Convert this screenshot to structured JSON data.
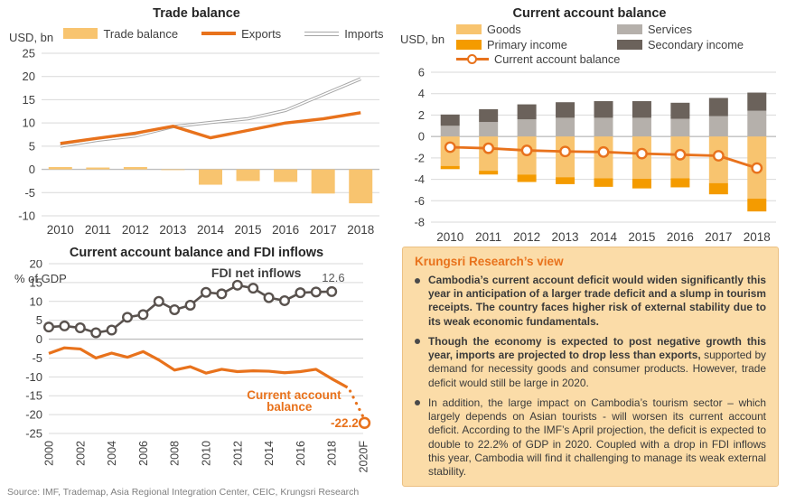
{
  "colors": {
    "light_orange": "#F8C46F",
    "mid_orange": "#F49B00",
    "orange": "#E8721C",
    "services_gray": "#B5B0AB",
    "secondary_gray": "#6B625B",
    "fdi_gray": "#59524E",
    "imports_gray": "#A6A6A6",
    "gridline": "#D9D9D9",
    "zero_line": "#BFBFBF",
    "tick_text": "#404040",
    "text_dark": "#3F3F3F",
    "muted_gray": "#595959",
    "panel_bg": "#FBDCA8",
    "panel_border": "#EBC083",
    "source_text": "#7F7F7F"
  },
  "chart_data": [
    {
      "id": "trade_balance",
      "type": "combo-bar-line",
      "title": "Trade balance",
      "unit_label": "USD, bn",
      "categories": [
        "2010",
        "2011",
        "2012",
        "2013",
        "2014",
        "2015",
        "2016",
        "2017",
        "2018"
      ],
      "ylim": [
        -10,
        25
      ],
      "ystep": 5,
      "series": [
        {
          "name": "Trade balance",
          "type": "bar",
          "color": "light_orange",
          "values": [
            0.5,
            0.4,
            0.5,
            -0.15,
            -3.3,
            -2.5,
            -2.7,
            -5.2,
            -7.3
          ]
        },
        {
          "name": "Exports",
          "type": "line",
          "color": "orange",
          "values": [
            5.6,
            6.7,
            7.8,
            9.3,
            6.8,
            8.4,
            10.0,
            10.9,
            12.2
          ]
        },
        {
          "name": "Imports",
          "type": "double-line",
          "color": "imports_gray",
          "values": [
            5.0,
            6.3,
            7.2,
            9.2,
            10.1,
            10.9,
            12.7,
            16.1,
            19.5
          ]
        }
      ]
    },
    {
      "id": "current_account_balance",
      "type": "stacked-bar-line",
      "title": "Current account balance",
      "unit_label": "USD, bn",
      "categories": [
        "2010",
        "2011",
        "2012",
        "2013",
        "2014",
        "2015",
        "2016",
        "2017",
        "2018"
      ],
      "ylim": [
        -8,
        6
      ],
      "ystep": 2,
      "series": [
        {
          "name": "Goods",
          "type": "bar",
          "color": "light_orange",
          "values": [
            -2.75,
            -3.2,
            -3.55,
            -3.8,
            -3.9,
            -3.95,
            -3.9,
            -4.35,
            -5.8
          ]
        },
        {
          "name": "Services",
          "type": "bar",
          "color": "services_gray",
          "values": [
            1.0,
            1.35,
            1.6,
            1.75,
            1.75,
            1.75,
            1.65,
            1.9,
            2.4
          ]
        },
        {
          "name": "Primary income",
          "type": "bar",
          "color": "mid_orange",
          "values": [
            -0.3,
            -0.35,
            -0.7,
            -0.65,
            -0.8,
            -0.9,
            -0.85,
            -1.05,
            -1.2
          ]
        },
        {
          "name": "Secondary income",
          "type": "bar",
          "color": "secondary_gray",
          "values": [
            1.05,
            1.2,
            1.4,
            1.45,
            1.55,
            1.55,
            1.5,
            1.7,
            1.7
          ]
        },
        {
          "name": "Current account balance",
          "type": "line-marker",
          "color": "orange",
          "values": [
            -1.0,
            -1.1,
            -1.3,
            -1.4,
            -1.45,
            -1.6,
            -1.7,
            -1.8,
            -2.95
          ]
        }
      ]
    },
    {
      "id": "cab_fdi_inflows",
      "type": "line",
      "title": "Current account balance and FDI inflows",
      "unit_label": "% of GDP",
      "x": [
        2000,
        2001,
        2002,
        2003,
        2004,
        2005,
        2006,
        2007,
        2008,
        2009,
        2010,
        2011,
        2012,
        2013,
        2014,
        2015,
        2016,
        2017,
        2018
      ],
      "ylim": [
        -25,
        20
      ],
      "ystep": 5,
      "series": [
        {
          "name": "FDI net inflows",
          "color": "fdi_gray",
          "markers": true,
          "values": [
            3.2,
            3.5,
            3.0,
            1.7,
            2.4,
            5.8,
            6.5,
            10.0,
            7.8,
            9.0,
            12.4,
            12.0,
            14.3,
            13.5,
            11.0,
            10.2,
            12.3,
            12.5,
            12.6
          ]
        },
        {
          "name": "Current account balance",
          "color": "orange",
          "markers": false,
          "values": [
            -3.8,
            -2.3,
            -2.6,
            -5.0,
            -3.7,
            -4.8,
            -3.3,
            -5.5,
            -8.2,
            -7.3,
            -9.0,
            -8.0,
            -8.6,
            -8.4,
            -8.5,
            -8.9,
            -8.6,
            -8.0,
            -10.5
          ]
        }
      ],
      "cab_solid_end": {
        "year": 2019,
        "value": -12.8
      },
      "forecast": {
        "label": "2020F",
        "year": 2020,
        "value": -22.2
      },
      "xticks": [
        {
          "year": 2000,
          "label": "2000"
        },
        {
          "year": 2002,
          "label": "2002"
        },
        {
          "year": 2004,
          "label": "2004"
        },
        {
          "year": 2006,
          "label": "2006"
        },
        {
          "year": 2008,
          "label": "2008"
        },
        {
          "year": 2010,
          "label": "2010"
        },
        {
          "year": 2012,
          "label": "2012"
        },
        {
          "year": 2014,
          "label": "2014"
        },
        {
          "year": 2016,
          "label": "2016"
        },
        {
          "year": 2018,
          "label": "2018"
        },
        {
          "year": 2020,
          "label": "2020F"
        }
      ],
      "annotations": [
        {
          "text": "FDI net inflows",
          "x": 2013.2,
          "y": 16.4,
          "color": "text_dark",
          "size": 14,
          "weight": 600,
          "anchor": "middle"
        },
        {
          "text": "12.6",
          "x": 2018.1,
          "y": 15.2,
          "color": "muted_gray",
          "size": 13,
          "weight": 400,
          "anchor": "middle"
        },
        {
          "text": "Current account",
          "x": 2015.6,
          "y": -15.9,
          "color": "orange",
          "size": 13.5,
          "weight": 700,
          "anchor": "middle"
        },
        {
          "text": "balance",
          "x": 2015.3,
          "y": -19.0,
          "color": "orange",
          "size": 13.5,
          "weight": 700,
          "anchor": "middle"
        },
        {
          "text": "-22.2",
          "x": 2019.7,
          "y": -23.3,
          "color": "orange",
          "size": 13.5,
          "weight": 700,
          "anchor": "end"
        }
      ]
    }
  ],
  "research_view": {
    "title": "Krungsri Research’s view",
    "bullets": [
      {
        "segments": [
          {
            "bold": true,
            "text": "Cambodia’s current account deficit would widen significantly this year in anticipation of a larger trade deficit and a slump in tourism receipts. The country faces higher risk of external stability due to its weak economic fundamentals."
          }
        ]
      },
      {
        "segments": [
          {
            "bold": true,
            "text": "Though the economy is expected to post negative growth this year, imports are projected to drop less than exports,"
          },
          {
            "bold": false,
            "text": " supported by demand for necessity goods and consumer products. However, trade deficit would still be large in 2020."
          }
        ]
      },
      {
        "segments": [
          {
            "bold": false,
            "text": "In addition, the large impact on Cambodia’s tourism sector – which largely depends on Asian tourists - will worsen its current account deficit. According to the IMF’s April projection, the deficit is expected to double to 22.2% of GDP in 2020. Coupled with a drop in FDI inflows this year, Cambodia will find it challenging to manage its weak external stability."
          }
        ]
      }
    ]
  },
  "footer": {
    "source_note": "Source: IMF, Trademap, Asia Regional Integration Center, CEIC, Krungsri Research"
  }
}
